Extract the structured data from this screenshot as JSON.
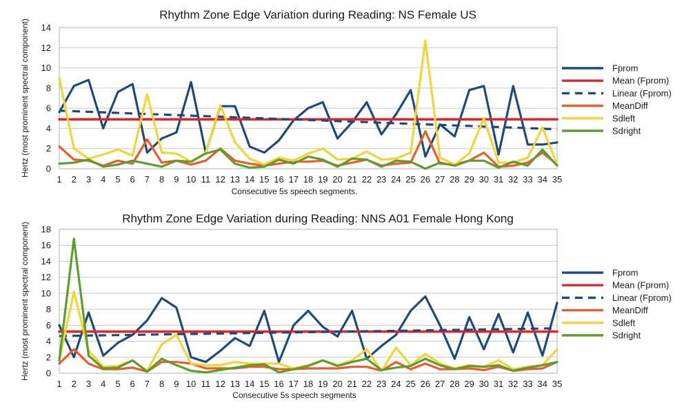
{
  "colors": {
    "Fprom": "#1c4a7a",
    "Mean (Fprom)": "#e0262b",
    "Linear (Fprom)": "#1c4a7a",
    "MeanDiff": "#f0592a",
    "Sdleft": "#f5d334",
    "Sdright": "#5b9f2a"
  },
  "chart_data": [
    {
      "type": "line",
      "title": "Rhythm Zone Edge Variation during Reading: NS Female US",
      "xlabel": "Consecutive 5s speech segments.",
      "ylabel": "Hertz (most prominent spectral component)",
      "ylim": [
        0,
        14
      ],
      "ytick_step": 2,
      "grid": true,
      "legend": "right",
      "x": [
        1,
        2,
        3,
        4,
        5,
        6,
        7,
        8,
        9,
        10,
        11,
        12,
        13,
        14,
        15,
        16,
        17,
        18,
        19,
        20,
        21,
        22,
        23,
        24,
        25,
        26,
        27,
        28,
        29,
        30,
        31,
        32,
        33,
        34,
        35
      ],
      "series": [
        {
          "name": "Fprom",
          "style": "solid",
          "values": [
            5.6,
            8.2,
            8.8,
            4.0,
            7.6,
            8.4,
            1.6,
            3.0,
            3.6,
            8.6,
            1.6,
            6.2,
            6.2,
            2.2,
            1.6,
            2.8,
            4.8,
            6.0,
            6.6,
            3.0,
            4.6,
            6.6,
            3.4,
            5.4,
            7.8,
            1.2,
            4.4,
            3.2,
            7.8,
            8.2,
            1.4,
            8.2,
            2.4,
            2.4,
            2.6
          ]
        },
        {
          "name": "Mean (Fprom)",
          "style": "mean",
          "values": [
            4.9,
            4.9,
            4.9,
            4.9,
            4.9,
            4.9,
            4.9,
            4.9,
            4.9,
            4.9,
            4.9,
            4.9,
            4.9,
            4.9,
            4.9,
            4.9,
            4.9,
            4.9,
            4.9,
            4.9,
            4.9,
            4.9,
            4.9,
            4.9,
            4.9,
            4.9,
            4.9,
            4.9,
            4.9,
            4.9,
            4.9,
            4.9,
            4.9,
            4.9,
            4.9
          ]
        },
        {
          "name": "Linear (Fprom)",
          "style": "dashed",
          "values": [
            5.75,
            5.7,
            5.64,
            5.59,
            5.53,
            5.48,
            5.43,
            5.37,
            5.32,
            5.26,
            5.21,
            5.16,
            5.1,
            5.05,
            4.99,
            4.94,
            4.89,
            4.83,
            4.78,
            4.72,
            4.67,
            4.62,
            4.56,
            4.51,
            4.45,
            4.4,
            4.35,
            4.29,
            4.24,
            4.18,
            4.13,
            4.08,
            4.02,
            3.97,
            3.91
          ]
        },
        {
          "name": "MeanDiff",
          "style": "solid",
          "values": [
            2.2,
            0.9,
            0.8,
            0.3,
            0.8,
            0.5,
            2.9,
            0.6,
            0.8,
            0.4,
            0.8,
            2.0,
            0.8,
            0.5,
            0.3,
            0.5,
            0.7,
            0.7,
            0.8,
            0.3,
            0.6,
            0.9,
            0.3,
            0.5,
            0.6,
            3.7,
            0.5,
            0.4,
            0.8,
            1.6,
            0.2,
            0.3,
            0.6,
            1.6,
            0.4
          ]
        },
        {
          "name": "Sdleft",
          "style": "solid",
          "values": [
            9.0,
            2.0,
            1.0,
            1.4,
            1.9,
            1.3,
            7.4,
            1.6,
            1.5,
            0.7,
            1.6,
            6.3,
            2.6,
            1.0,
            0.4,
            1.1,
            0.8,
            1.5,
            2.0,
            0.9,
            1.0,
            1.7,
            0.9,
            1.0,
            1.6,
            12.7,
            1.1,
            0.4,
            1.5,
            5.0,
            0.6,
            0.6,
            1.1,
            4.1,
            0.4
          ]
        },
        {
          "name": "Sdright",
          "style": "solid",
          "values": [
            0.5,
            0.6,
            0.9,
            0.2,
            0.4,
            0.8,
            0.5,
            0.2,
            0.8,
            0.7,
            1.5,
            1.9,
            0.5,
            0.1,
            0.2,
            0.9,
            0.5,
            1.2,
            0.9,
            0.2,
            1.0,
            0.9,
            0.2,
            0.8,
            0.7,
            0.0,
            0.6,
            0.3,
            0.8,
            0.8,
            0.1,
            0.7,
            0.3,
            1.9,
            0.3
          ]
        }
      ]
    },
    {
      "type": "line",
      "title": "Rhythm Zone Edge Variation during Reading: NNS A01 Female Hong Kong",
      "xlabel": "Consecutive 5s speech segments",
      "ylabel": "Hertz (most prominent spectral component)",
      "ylim": [
        0,
        18
      ],
      "ytick_step": 2,
      "grid": true,
      "legend": "right",
      "x": [
        1,
        2,
        3,
        4,
        5,
        6,
        7,
        8,
        9,
        10,
        11,
        12,
        13,
        14,
        15,
        16,
        17,
        18,
        19,
        20,
        21,
        22,
        23,
        24,
        25,
        26,
        27,
        28,
        29,
        30,
        31,
        32,
        33,
        34,
        35
      ],
      "series": [
        {
          "name": "Fprom",
          "style": "solid",
          "values": [
            6.0,
            2.0,
            7.6,
            2.2,
            3.8,
            4.8,
            6.6,
            9.4,
            8.2,
            2.0,
            1.4,
            2.8,
            4.4,
            3.4,
            7.8,
            1.4,
            6.0,
            7.8,
            5.8,
            4.6,
            7.8,
            1.8,
            3.4,
            4.8,
            7.8,
            9.6,
            6.0,
            1.8,
            7.0,
            3.0,
            7.4,
            2.6,
            7.6,
            2.2,
            8.8
          ]
        },
        {
          "name": "Mean (Fprom)",
          "style": "mean",
          "values": [
            5.2,
            5.2,
            5.2,
            5.2,
            5.2,
            5.2,
            5.2,
            5.2,
            5.2,
            5.2,
            5.2,
            5.2,
            5.2,
            5.2,
            5.2,
            5.2,
            5.2,
            5.2,
            5.2,
            5.2,
            5.2,
            5.2,
            5.2,
            5.2,
            5.2,
            5.2,
            5.2,
            5.2,
            5.2,
            5.2,
            5.2,
            5.2,
            5.2,
            5.2,
            5.2
          ]
        },
        {
          "name": "Linear (Fprom)",
          "style": "dashed",
          "values": [
            4.65,
            4.68,
            4.71,
            4.74,
            4.76,
            4.79,
            4.82,
            4.85,
            4.88,
            4.91,
            4.93,
            4.96,
            4.99,
            5.02,
            5.05,
            5.08,
            5.1,
            5.13,
            5.16,
            5.19,
            5.22,
            5.25,
            5.27,
            5.3,
            5.33,
            5.36,
            5.39,
            5.42,
            5.44,
            5.47,
            5.5,
            5.53,
            5.56,
            5.59,
            5.61
          ]
        },
        {
          "name": "MeanDiff",
          "style": "solid",
          "values": [
            1.2,
            3.0,
            1.2,
            0.5,
            0.5,
            0.7,
            0.2,
            1.4,
            1.4,
            1.2,
            0.6,
            0.6,
            0.6,
            0.8,
            0.8,
            0.5,
            0.5,
            0.6,
            0.6,
            0.6,
            0.8,
            0.8,
            0.3,
            1.4,
            0.5,
            1.2,
            0.5,
            0.5,
            0.6,
            0.4,
            0.8,
            0.3,
            0.5,
            0.6,
            1.4
          ]
        },
        {
          "name": "Sdleft",
          "style": "solid",
          "values": [
            1.6,
            10.2,
            2.8,
            0.8,
            0.9,
            1.6,
            0.3,
            3.6,
            4.8,
            1.2,
            1.0,
            1.0,
            1.4,
            1.2,
            1.2,
            1.2,
            0.6,
            1.0,
            1.6,
            1.0,
            1.6,
            3.0,
            0.3,
            3.2,
            1.0,
            2.4,
            1.2,
            0.6,
            1.0,
            0.8,
            1.6,
            0.5,
            0.8,
            1.0,
            3.0
          ]
        },
        {
          "name": "Sdright",
          "style": "solid",
          "values": [
            1.6,
            16.8,
            2.2,
            0.6,
            0.7,
            1.6,
            0.2,
            1.8,
            1.0,
            0.3,
            0.1,
            0.4,
            0.7,
            1.0,
            1.1,
            0.1,
            0.5,
            0.9,
            1.6,
            0.9,
            1.4,
            1.8,
            0.4,
            0.7,
            0.9,
            1.8,
            1.0,
            0.5,
            0.9,
            0.8,
            1.0,
            0.3,
            0.7,
            1.0,
            1.4
          ]
        }
      ]
    }
  ]
}
